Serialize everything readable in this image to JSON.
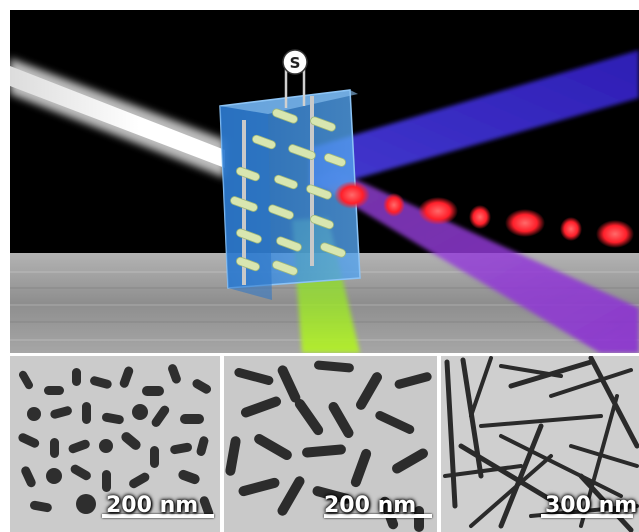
{
  "top_panel": {
    "meter_symbol": "S",
    "colors": {
      "white_beam": "#f2f2f2",
      "blue_beam": "#3a2fd6",
      "violet_beam": "#8a3ad8",
      "green_beam": "#9be02a",
      "red_pulse": "#ff1f2a",
      "cuvette": "#3e8fe0",
      "nanorod": "#d8e6b0",
      "background": "#000000",
      "table": "#9c9c9c"
    }
  },
  "tem_panels": [
    {
      "scale_label": "200 nm"
    },
    {
      "scale_label": "200 nm"
    },
    {
      "scale_label": "300 nm"
    }
  ]
}
